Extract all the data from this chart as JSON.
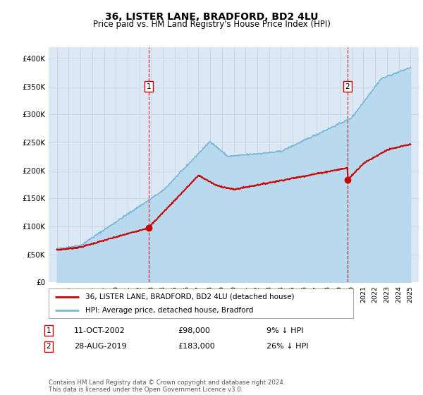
{
  "title": "36, LISTER LANE, BRADFORD, BD2 4LU",
  "subtitle": "Price paid vs. HM Land Registry's House Price Index (HPI)",
  "legend_line1": "36, LISTER LANE, BRADFORD, BD2 4LU (detached house)",
  "legend_line2": "HPI: Average price, detached house, Bradford",
  "annotation1_label": "1",
  "annotation1_date": "11-OCT-2002",
  "annotation1_price": "£98,000",
  "annotation1_hpi": "9% ↓ HPI",
  "annotation2_label": "2",
  "annotation2_date": "28-AUG-2019",
  "annotation2_price": "£183,000",
  "annotation2_hpi": "26% ↓ HPI",
  "footer": "Contains HM Land Registry data © Crown copyright and database right 2024.\nThis data is licensed under the Open Government Licence v3.0.",
  "ylim": [
    0,
    420000
  ],
  "yticks": [
    0,
    50000,
    100000,
    150000,
    200000,
    250000,
    300000,
    350000,
    400000
  ],
  "ytick_labels": [
    "£0",
    "£50K",
    "£100K",
    "£150K",
    "£200K",
    "£250K",
    "£300K",
    "£350K",
    "£400K"
  ],
  "year_start": 1995,
  "year_end": 2025,
  "hpi_color": "#7ab8d9",
  "hpi_fill_color": "#b8d9ee",
  "price_color": "#cc0000",
  "bg_color": "#dce9f5",
  "sale1_year": 2002.78,
  "sale1_price": 98000,
  "sale2_year": 2019.65,
  "sale2_price": 183000
}
